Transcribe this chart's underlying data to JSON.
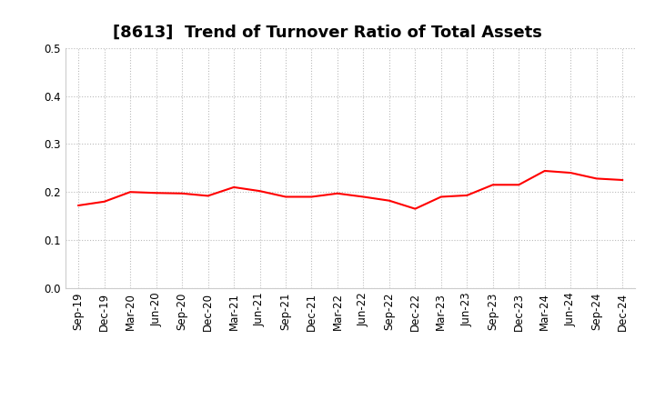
{
  "title": "[8613]  Trend of Turnover Ratio of Total Assets",
  "line_color": "#FF0000",
  "background_color": "#FFFFFF",
  "grid_color": "#BBBBBB",
  "ylim": [
    0.0,
    0.5
  ],
  "yticks": [
    0.0,
    0.1,
    0.2,
    0.3,
    0.4,
    0.5
  ],
  "labels": [
    "Sep-19",
    "Dec-19",
    "Mar-20",
    "Jun-20",
    "Sep-20",
    "Dec-20",
    "Mar-21",
    "Jun-21",
    "Sep-21",
    "Dec-21",
    "Mar-22",
    "Jun-22",
    "Sep-22",
    "Dec-22",
    "Mar-23",
    "Jun-23",
    "Sep-23",
    "Dec-23",
    "Mar-24",
    "Jun-24",
    "Sep-24",
    "Dec-24"
  ],
  "values": [
    0.172,
    0.18,
    0.2,
    0.198,
    0.197,
    0.192,
    0.21,
    0.202,
    0.19,
    0.19,
    0.197,
    0.19,
    0.182,
    0.165,
    0.19,
    0.193,
    0.215,
    0.215,
    0.244,
    0.24,
    0.228,
    0.225
  ],
  "title_fontsize": 13,
  "tick_fontsize": 8.5
}
